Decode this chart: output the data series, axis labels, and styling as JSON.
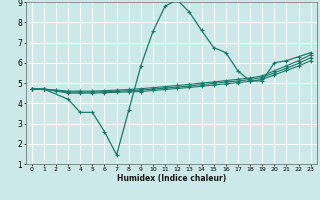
{
  "title": "",
  "xlabel": "Humidex (Indice chaleur)",
  "background_color": "#cce8e8",
  "grid_color": "#ffffff",
  "line_color": "#1a7a6a",
  "xlim": [
    -0.5,
    23.5
  ],
  "ylim": [
    1,
    9
  ],
  "xticks": [
    0,
    1,
    2,
    3,
    4,
    5,
    6,
    7,
    8,
    9,
    10,
    11,
    12,
    13,
    14,
    15,
    16,
    17,
    18,
    19,
    20,
    21,
    22,
    23
  ],
  "yticks": [
    1,
    2,
    3,
    4,
    5,
    6,
    7,
    8,
    9
  ],
  "lines": [
    {
      "x": [
        0,
        1,
        3,
        4,
        5,
        6,
        7,
        8,
        9,
        10,
        11,
        12,
        13,
        14,
        15,
        16,
        17,
        18,
        19,
        20,
        21,
        22,
        23
      ],
      "y": [
        4.7,
        4.7,
        4.2,
        3.55,
        3.55,
        2.6,
        1.45,
        3.65,
        5.85,
        7.55,
        8.8,
        9.1,
        8.5,
        7.6,
        6.75,
        6.5,
        5.6,
        5.1,
        5.1,
        6.0,
        6.1,
        6.3,
        6.5
      ]
    },
    {
      "x": [
        0,
        1,
        2,
        3,
        4,
        5,
        6,
        7,
        8,
        9,
        10,
        11,
        12,
        13,
        14,
        15,
        16,
        17,
        18,
        19,
        20,
        21,
        22,
        23
      ],
      "y": [
        4.7,
        4.7,
        4.65,
        4.6,
        4.6,
        4.6,
        4.62,
        4.65,
        4.68,
        4.72,
        4.77,
        4.82,
        4.88,
        4.93,
        5.0,
        5.05,
        5.12,
        5.18,
        5.25,
        5.35,
        5.6,
        5.85,
        6.1,
        6.4
      ]
    },
    {
      "x": [
        0,
        1,
        2,
        3,
        4,
        5,
        6,
        7,
        8,
        9,
        10,
        11,
        12,
        13,
        14,
        15,
        16,
        17,
        18,
        19,
        20,
        21,
        22,
        23
      ],
      "y": [
        4.7,
        4.7,
        4.63,
        4.55,
        4.55,
        4.55,
        4.57,
        4.59,
        4.62,
        4.65,
        4.7,
        4.75,
        4.8,
        4.85,
        4.92,
        4.98,
        5.05,
        5.1,
        5.17,
        5.27,
        5.5,
        5.73,
        5.97,
        6.25
      ]
    },
    {
      "x": [
        0,
        1,
        2,
        3,
        4,
        5,
        6,
        7,
        8,
        9,
        10,
        11,
        12,
        13,
        14,
        15,
        16,
        17,
        18,
        19,
        20,
        21,
        22,
        23
      ],
      "y": [
        4.7,
        4.7,
        4.6,
        4.5,
        4.5,
        4.5,
        4.52,
        4.54,
        4.56,
        4.58,
        4.63,
        4.68,
        4.73,
        4.78,
        4.84,
        4.9,
        4.96,
        5.02,
        5.08,
        5.18,
        5.4,
        5.62,
        5.84,
        6.1
      ]
    }
  ]
}
